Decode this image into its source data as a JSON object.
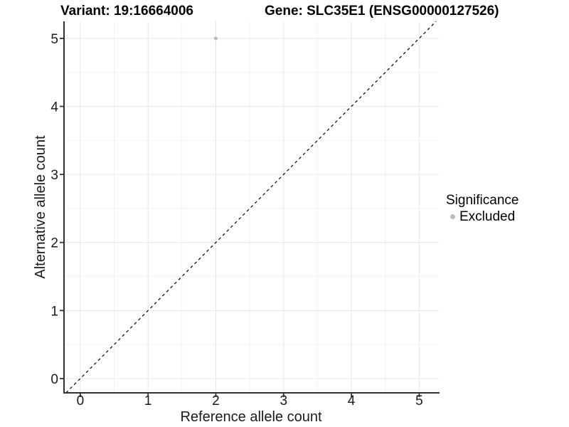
{
  "title": {
    "variant": "Variant: 19:16664006",
    "gene": "Gene: SLC35E1 (ENSG00000127526)"
  },
  "chart_data": {
    "type": "scatter",
    "title_left": "Variant: 19:16664006",
    "title_right": "Gene: SLC35E1 (ENSG00000127526)",
    "xlabel": "Reference allele count",
    "ylabel": "Alternative allele count",
    "xlim": [
      -0.24,
      5.29
    ],
    "ylim": [
      -0.21,
      5.25
    ],
    "xticks": [
      0,
      1,
      2,
      3,
      4,
      5
    ],
    "yticks": [
      0,
      1,
      2,
      3,
      4,
      5
    ],
    "minor_grid_step": 0.5,
    "grid": true,
    "points": [
      {
        "x": 2,
        "y": 5,
        "series": "Excluded"
      }
    ],
    "reference_line": {
      "equation": "y = x",
      "style": "dashed",
      "color": "#000000"
    },
    "legend": {
      "title": "Significance",
      "position": "right",
      "items": [
        {
          "label": "Excluded",
          "marker": "circle",
          "color": "#bdbdbd"
        }
      ]
    },
    "colors": {
      "point": "#bdbdbd",
      "grid_major": "#e6e6e6",
      "grid_minor": "#f2f2f2",
      "axis": "#333333",
      "tick_text": "#1a1a1a",
      "background": "#ffffff"
    }
  }
}
